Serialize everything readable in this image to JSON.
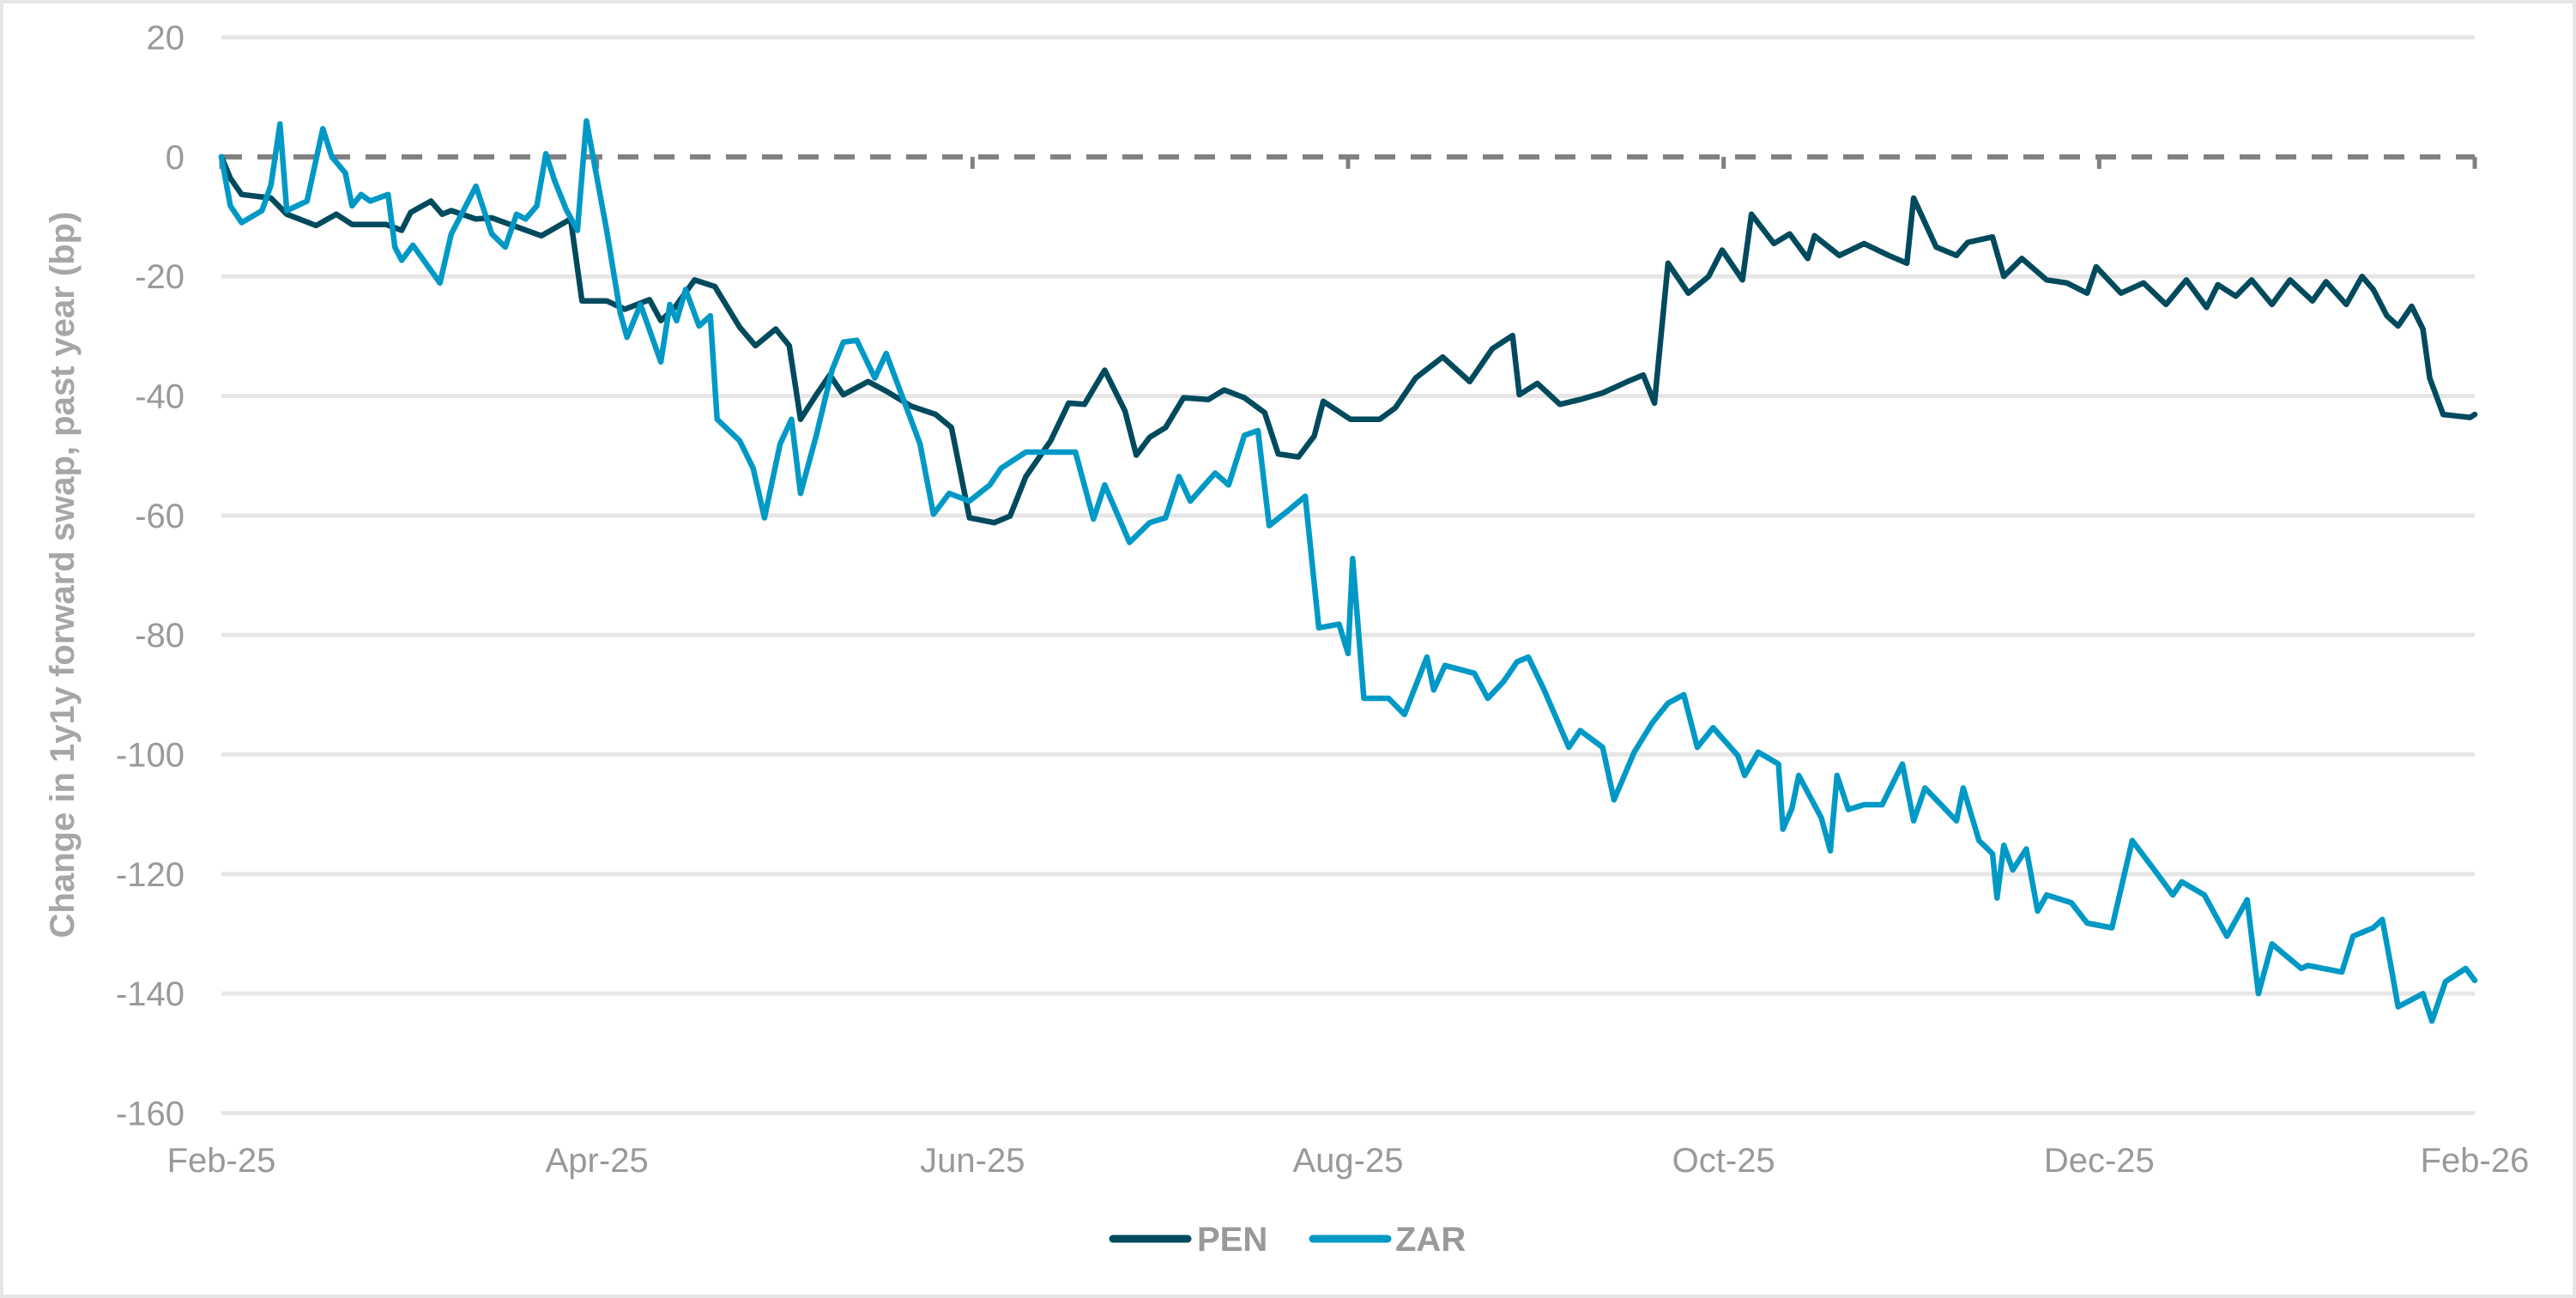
{
  "chart_data": {
    "type": "line",
    "title": "",
    "xlabel": "",
    "ylabel": "Change in 1y1y forward swap, past year (bp)",
    "ylim": [
      -160,
      20
    ],
    "yticks": [
      20,
      0,
      -20,
      -40,
      -60,
      -80,
      -100,
      -120,
      -140,
      -160
    ],
    "ytick_labels": [
      "20",
      "0",
      "-20",
      "-40",
      "-60",
      "-80",
      "-100",
      "-120",
      "-140",
      "-160"
    ],
    "xticks": [
      "Feb-25",
      "Apr-25",
      "Jun-25",
      "Aug-25",
      "Oct-25",
      "Dec-25",
      "Feb-26"
    ],
    "xrange": [
      "Feb-25",
      "Feb-26"
    ],
    "grid": "horizontal",
    "reference_line": {
      "value": 0,
      "style": "dashed",
      "color": "#808080"
    },
    "legend_position": "bottom",
    "series": [
      {
        "name": "PEN",
        "color": "#004a5e",
        "points": [
          [
            0,
            0
          ],
          [
            0.004,
            -3.6
          ],
          [
            0.009,
            -6.3
          ],
          [
            0.022,
            -6.9
          ],
          [
            0.029,
            -9.6
          ],
          [
            0.042,
            -11.5
          ],
          [
            0.051,
            -9.6
          ],
          [
            0.058,
            -11.3
          ],
          [
            0.073,
            -11.3
          ],
          [
            0.08,
            -12.3
          ],
          [
            0.084,
            -9.3
          ],
          [
            0.093,
            -7.4
          ],
          [
            0.098,
            -9.6
          ],
          [
            0.102,
            -9
          ],
          [
            0.113,
            -10.4
          ],
          [
            0.12,
            -10.2
          ],
          [
            0.142,
            -13.2
          ],
          [
            0.155,
            -10.4
          ],
          [
            0.16,
            -24.1
          ],
          [
            0.171,
            -24.1
          ],
          [
            0.179,
            -25.5
          ],
          [
            0.19,
            -23.9
          ],
          [
            0.195,
            -27.4
          ],
          [
            0.201,
            -25.3
          ],
          [
            0.21,
            -20.6
          ],
          [
            0.219,
            -21.7
          ],
          [
            0.23,
            -28.5
          ],
          [
            0.237,
            -31.6
          ],
          [
            0.246,
            -28.8
          ],
          [
            0.252,
            -31.6
          ],
          [
            0.257,
            -43.9
          ],
          [
            0.264,
            -39.8
          ],
          [
            0.27,
            -36.5
          ],
          [
            0.276,
            -39.8
          ],
          [
            0.287,
            -37.6
          ],
          [
            0.295,
            -39.2
          ],
          [
            0.306,
            -41.7
          ],
          [
            0.317,
            -43.1
          ],
          [
            0.324,
            -45.3
          ],
          [
            0.332,
            -60.4
          ],
          [
            0.343,
            -61.2
          ],
          [
            0.35,
            -60.1
          ],
          [
            0.357,
            -53.5
          ],
          [
            0.368,
            -47.5
          ],
          [
            0.376,
            -41.2
          ],
          [
            0.383,
            -41.4
          ],
          [
            0.392,
            -35.7
          ],
          [
            0.401,
            -42.5
          ],
          [
            0.406,
            -49.9
          ],
          [
            0.412,
            -46.9
          ],
          [
            0.419,
            -45.3
          ],
          [
            0.427,
            -40.3
          ],
          [
            0.438,
            -40.6
          ],
          [
            0.445,
            -39
          ],
          [
            0.454,
            -40.3
          ],
          [
            0.463,
            -42.8
          ],
          [
            0.469,
            -49.7
          ],
          [
            0.478,
            -50.2
          ],
          [
            0.485,
            -46.7
          ],
          [
            0.489,
            -40.9
          ],
          [
            0.501,
            -43.9
          ],
          [
            0.514,
            -43.9
          ],
          [
            0.521,
            -42
          ],
          [
            0.53,
            -37
          ],
          [
            0.542,
            -33.5
          ],
          [
            0.554,
            -37.6
          ],
          [
            0.564,
            -32.1
          ],
          [
            0.573,
            -29.9
          ],
          [
            0.576,
            -39.8
          ],
          [
            0.584,
            -37.9
          ],
          [
            0.594,
            -41.4
          ],
          [
            0.603,
            -40.6
          ],
          [
            0.613,
            -39.5
          ],
          [
            0.624,
            -37.6
          ],
          [
            0.631,
            -36.5
          ],
          [
            0.636,
            -41.2
          ],
          [
            0.642,
            -17.8
          ],
          [
            0.651,
            -22.8
          ],
          [
            0.66,
            -20
          ],
          [
            0.666,
            -15.6
          ],
          [
            0.675,
            -20.6
          ],
          [
            0.679,
            -9.6
          ],
          [
            0.689,
            -14.5
          ],
          [
            0.696,
            -12.9
          ],
          [
            0.704,
            -17
          ],
          [
            0.707,
            -13.2
          ],
          [
            0.718,
            -16.5
          ],
          [
            0.729,
            -14.5
          ],
          [
            0.74,
            -16.5
          ],
          [
            0.748,
            -17.8
          ],
          [
            0.751,
            -6.9
          ],
          [
            0.761,
            -15.1
          ],
          [
            0.77,
            -16.5
          ],
          [
            0.775,
            -14.3
          ],
          [
            0.786,
            -13.4
          ],
          [
            0.791,
            -20
          ],
          [
            0.799,
            -17
          ],
          [
            0.81,
            -20.6
          ],
          [
            0.819,
            -21.1
          ],
          [
            0.828,
            -22.8
          ],
          [
            0.832,
            -18.4
          ],
          [
            0.843,
            -22.8
          ],
          [
            0.853,
            -21.1
          ],
          [
            0.863,
            -24.7
          ],
          [
            0.872,
            -20.6
          ],
          [
            0.881,
            -25.2
          ],
          [
            0.886,
            -21.4
          ],
          [
            0.894,
            -23.3
          ],
          [
            0.901,
            -20.6
          ],
          [
            0.91,
            -24.7
          ],
          [
            0.918,
            -20.6
          ],
          [
            0.928,
            -24.1
          ],
          [
            0.934,
            -20.9
          ],
          [
            0.943,
            -24.7
          ],
          [
            0.95,
            -20
          ],
          [
            0.955,
            -22.2
          ],
          [
            0.961,
            -26.6
          ],
          [
            0.966,
            -28.3
          ],
          [
            0.972,
            -25
          ],
          [
            0.977,
            -28.8
          ],
          [
            0.98,
            -37
          ],
          [
            0.986,
            -43.1
          ],
          [
            0.993,
            -43.4
          ],
          [
            0.998,
            -43.6
          ],
          [
            1,
            -43.1
          ]
        ]
      },
      {
        "name": "ZAR",
        "color": "#0099c6",
        "points": [
          [
            0,
            0
          ],
          [
            0.004,
            -8.2
          ],
          [
            0.009,
            -11
          ],
          [
            0.018,
            -9
          ],
          [
            0.022,
            -4.7
          ],
          [
            0.026,
            5.5
          ],
          [
            0.029,
            -9
          ],
          [
            0.038,
            -7.4
          ],
          [
            0.045,
            4.7
          ],
          [
            0.049,
            0
          ],
          [
            0.055,
            -2.7
          ],
          [
            0.058,
            -8.2
          ],
          [
            0.062,
            -6.3
          ],
          [
            0.066,
            -7.4
          ],
          [
            0.074,
            -6.3
          ],
          [
            0.077,
            -15.1
          ],
          [
            0.08,
            -17.3
          ],
          [
            0.085,
            -14.8
          ],
          [
            0.097,
            -21.1
          ],
          [
            0.102,
            -12.9
          ],
          [
            0.113,
            -4.9
          ],
          [
            0.12,
            -12.9
          ],
          [
            0.126,
            -15.1
          ],
          [
            0.131,
            -9.6
          ],
          [
            0.135,
            -10.4
          ],
          [
            0.14,
            -8.2
          ],
          [
            0.144,
            0.5
          ],
          [
            0.148,
            -4.1
          ],
          [
            0.153,
            -8.8
          ],
          [
            0.158,
            -12.3
          ],
          [
            0.162,
            6
          ],
          [
            0.171,
            -12.3
          ],
          [
            0.177,
            -26.1
          ],
          [
            0.18,
            -30.2
          ],
          [
            0.186,
            -24.7
          ],
          [
            0.195,
            -34.3
          ],
          [
            0.199,
            -24.7
          ],
          [
            0.202,
            -27.4
          ],
          [
            0.206,
            -22.2
          ],
          [
            0.212,
            -28.3
          ],
          [
            0.217,
            -26.6
          ],
          [
            0.22,
            -43.9
          ],
          [
            0.23,
            -47.5
          ],
          [
            0.236,
            -52.1
          ],
          [
            0.241,
            -60.4
          ],
          [
            0.248,
            -48
          ],
          [
            0.253,
            -43.9
          ],
          [
            0.257,
            -56.3
          ],
          [
            0.264,
            -46.6
          ],
          [
            0.271,
            -35.7
          ],
          [
            0.276,
            -31
          ],
          [
            0.282,
            -30.7
          ],
          [
            0.29,
            -37
          ],
          [
            0.295,
            -32.9
          ],
          [
            0.31,
            -48
          ],
          [
            0.316,
            -59.8
          ],
          [
            0.323,
            -56.3
          ],
          [
            0.332,
            -57.6
          ],
          [
            0.341,
            -54.9
          ],
          [
            0.346,
            -52.1
          ],
          [
            0.357,
            -49.4
          ],
          [
            0.379,
            -49.4
          ],
          [
            0.387,
            -60.6
          ],
          [
            0.392,
            -54.9
          ],
          [
            0.403,
            -64.5
          ],
          [
            0.412,
            -61.2
          ],
          [
            0.419,
            -60.4
          ],
          [
            0.425,
            -53.5
          ],
          [
            0.43,
            -57.6
          ],
          [
            0.441,
            -52.9
          ],
          [
            0.447,
            -54.9
          ],
          [
            0.454,
            -46.6
          ],
          [
            0.46,
            -45.8
          ],
          [
            0.465,
            -61.7
          ],
          [
            0.474,
            -59
          ],
          [
            0.481,
            -56.8
          ],
          [
            0.487,
            -78.8
          ],
          [
            0.496,
            -78.2
          ],
          [
            0.5,
            -83.1
          ],
          [
            0.502,
            -67.2
          ],
          [
            0.507,
            -90.6
          ],
          [
            0.518,
            -90.6
          ],
          [
            0.525,
            -93.3
          ],
          [
            0.535,
            -83.7
          ],
          [
            0.538,
            -89.2
          ],
          [
            0.543,
            -85.1
          ],
          [
            0.556,
            -86.4
          ],
          [
            0.562,
            -90.6
          ],
          [
            0.569,
            -87.8
          ],
          [
            0.575,
            -84.5
          ],
          [
            0.58,
            -83.7
          ],
          [
            0.587,
            -89.2
          ],
          [
            0.598,
            -98.8
          ],
          [
            0.603,
            -96
          ],
          [
            0.613,
            -98.8
          ],
          [
            0.618,
            -107.6
          ],
          [
            0.627,
            -99.6
          ],
          [
            0.635,
            -94.7
          ],
          [
            0.642,
            -91.4
          ],
          [
            0.649,
            -90
          ],
          [
            0.655,
            -98.8
          ],
          [
            0.662,
            -95.5
          ],
          [
            0.673,
            -100.2
          ],
          [
            0.676,
            -103.5
          ],
          [
            0.682,
            -99.6
          ],
          [
            0.691,
            -101.6
          ],
          [
            0.693,
            -112.5
          ],
          [
            0.697,
            -109
          ],
          [
            0.7,
            -103.5
          ],
          [
            0.71,
            -110.6
          ],
          [
            0.714,
            -116.1
          ],
          [
            0.717,
            -103.5
          ],
          [
            0.722,
            -109.2
          ],
          [
            0.729,
            -108.4
          ],
          [
            0.737,
            -108.4
          ],
          [
            0.746,
            -101.6
          ],
          [
            0.751,
            -111.1
          ],
          [
            0.756,
            -105.6
          ],
          [
            0.77,
            -111.1
          ],
          [
            0.773,
            -105.6
          ],
          [
            0.78,
            -114.4
          ],
          [
            0.786,
            -116.6
          ],
          [
            0.788,
            -124
          ],
          [
            0.791,
            -115.2
          ],
          [
            0.795,
            -119.3
          ],
          [
            0.801,
            -115.8
          ],
          [
            0.806,
            -126.2
          ],
          [
            0.81,
            -123.5
          ],
          [
            0.821,
            -124.8
          ],
          [
            0.828,
            -128.2
          ],
          [
            0.839,
            -129
          ],
          [
            0.848,
            -114.4
          ],
          [
            0.859,
            -119.9
          ],
          [
            0.866,
            -123.5
          ],
          [
            0.87,
            -121.3
          ],
          [
            0.88,
            -123.5
          ],
          [
            0.89,
            -130.4
          ],
          [
            0.899,
            -124.3
          ],
          [
            0.904,
            -140
          ],
          [
            0.91,
            -131.7
          ],
          [
            0.923,
            -135.8
          ],
          [
            0.926,
            -135.3
          ],
          [
            0.941,
            -136.4
          ],
          [
            0.946,
            -130.4
          ],
          [
            0.955,
            -129
          ],
          [
            0.959,
            -127.6
          ],
          [
            0.963,
            -135.8
          ],
          [
            0.966,
            -142.2
          ],
          [
            0.977,
            -140
          ],
          [
            0.981,
            -144.6
          ],
          [
            0.987,
            -138
          ],
          [
            0.996,
            -135.8
          ],
          [
            1,
            -137.8
          ]
        ]
      }
    ]
  },
  "legend": {
    "items": [
      {
        "label": "PEN",
        "color": "#004a5e"
      },
      {
        "label": "ZAR",
        "color": "#0099c6"
      }
    ]
  },
  "style": {
    "grid_color": "#e6e6e6",
    "zero_line_color": "#808080",
    "text_color": "#999999",
    "frame_color": "#e6e6e6"
  }
}
